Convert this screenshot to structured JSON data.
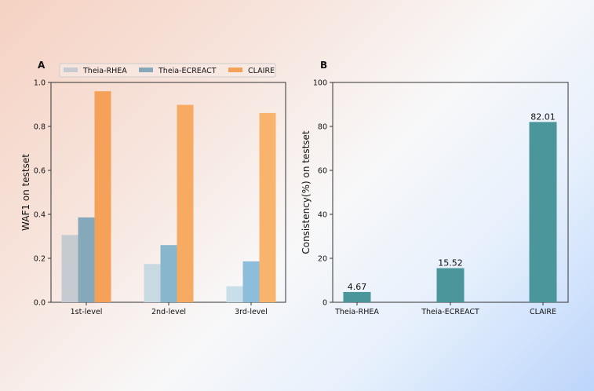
{
  "chart_data": [
    {
      "panel": "A",
      "type": "bar",
      "title": "",
      "xlabel": "",
      "ylabel": "WAF1 on testset",
      "categories": [
        "1st-level",
        "2nd-level",
        "3rd-level"
      ],
      "ylim": [
        0,
        1.0
      ],
      "yticks": [
        "0.0",
        "0.2",
        "0.4",
        "0.6",
        "0.8",
        "1.0"
      ],
      "legend_position": "top",
      "series": [
        {
          "name": "Theia-RHEA",
          "values": [
            0.306,
            0.174,
            0.073
          ],
          "colors": [
            "#c5cbd0",
            "#c9d9e2",
            "#c8dfea"
          ]
        },
        {
          "name": "Theia-ECREACT",
          "values": [
            0.386,
            0.26,
            0.186
          ],
          "colors": [
            "#85a9ba",
            "#88b6cd",
            "#8cbedb"
          ]
        },
        {
          "name": "CLAIRE",
          "values": [
            0.96,
            0.898,
            0.861
          ],
          "colors": [
            "#f6a15a",
            "#f7aa62",
            "#f8b46d"
          ]
        }
      ]
    },
    {
      "panel": "B",
      "type": "bar",
      "title": "",
      "xlabel": "",
      "ylabel": "Consistency(%) on testset",
      "categories": [
        "Theia-RHEA",
        "Theia-ECREACT",
        "CLAIRE"
      ],
      "values": [
        4.67,
        15.52,
        82.01
      ],
      "data_labels": [
        "4.67",
        "15.52",
        "82.01"
      ],
      "ylim": [
        0,
        100
      ],
      "yticks": [
        "0",
        "20",
        "40",
        "60",
        "80",
        "100"
      ],
      "color": "#4a969b"
    }
  ]
}
